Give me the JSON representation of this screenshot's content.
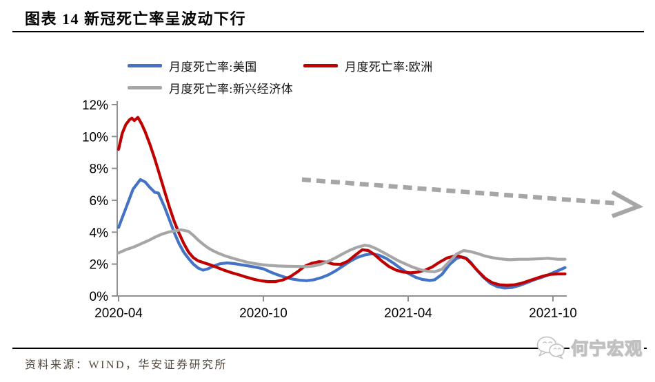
{
  "header": {
    "title": "图表 14 新冠死亡率呈波动下行"
  },
  "footer": {
    "source": "资料来源：WIND，华安证券研究所"
  },
  "watermark": {
    "text": "何宁宏观",
    "icon": "wechat-chat-bubbles-icon"
  },
  "chart_data": {
    "type": "line",
    "title": "图表 14 新冠死亡率呈波动下行",
    "grid": false,
    "legend_position": "top",
    "x_axis": {
      "unit": "months since 2020-04",
      "range_months": [
        0,
        18.6
      ],
      "ticks": [
        {
          "pos": 0,
          "label": "2020-04"
        },
        {
          "pos": 6,
          "label": "2020-10"
        },
        {
          "pos": 12,
          "label": "2021-04"
        },
        {
          "pos": 18,
          "label": "2021-10"
        }
      ]
    },
    "y_axis": {
      "unit": "%",
      "range": [
        0,
        12
      ],
      "ticks": [
        {
          "value": 0,
          "label": "0%"
        },
        {
          "value": 2,
          "label": "2%"
        },
        {
          "value": 4,
          "label": "4%"
        },
        {
          "value": 6,
          "label": "6%"
        },
        {
          "value": 8,
          "label": "8%"
        },
        {
          "value": 10,
          "label": "10%"
        },
        {
          "value": 12,
          "label": "12%"
        }
      ]
    },
    "series": [
      {
        "name": "月度死亡率:美国",
        "color": "#4472C4",
        "points": [
          [
            0,
            4.3
          ],
          [
            0.3,
            5.5
          ],
          [
            0.6,
            6.7
          ],
          [
            0.9,
            7.3
          ],
          [
            1.1,
            7.15
          ],
          [
            1.3,
            6.8
          ],
          [
            1.5,
            6.5
          ],
          [
            1.65,
            6.45
          ],
          [
            1.9,
            5.6
          ],
          [
            2.1,
            4.8
          ],
          [
            2.3,
            4.0
          ],
          [
            2.5,
            3.3
          ],
          [
            2.7,
            2.75
          ],
          [
            2.9,
            2.35
          ],
          [
            3.1,
            2.0
          ],
          [
            3.3,
            1.75
          ],
          [
            3.5,
            1.62
          ],
          [
            3.7,
            1.7
          ],
          [
            3.9,
            1.85
          ],
          [
            4.2,
            2.02
          ],
          [
            4.5,
            2.07
          ],
          [
            4.8,
            2.03
          ],
          [
            5.1,
            1.95
          ],
          [
            5.4,
            1.88
          ],
          [
            5.7,
            1.8
          ],
          [
            6.0,
            1.7
          ],
          [
            6.3,
            1.5
          ],
          [
            6.6,
            1.32
          ],
          [
            6.9,
            1.17
          ],
          [
            7.2,
            1.06
          ],
          [
            7.5,
            0.99
          ],
          [
            7.8,
            0.96
          ],
          [
            8.1,
            1.02
          ],
          [
            8.4,
            1.15
          ],
          [
            8.7,
            1.33
          ],
          [
            9.0,
            1.58
          ],
          [
            9.3,
            1.88
          ],
          [
            9.6,
            2.18
          ],
          [
            9.9,
            2.42
          ],
          [
            10.2,
            2.57
          ],
          [
            10.5,
            2.65
          ],
          [
            10.8,
            2.55
          ],
          [
            11.1,
            2.35
          ],
          [
            11.4,
            2.05
          ],
          [
            11.7,
            1.72
          ],
          [
            12.0,
            1.42
          ],
          [
            12.3,
            1.18
          ],
          [
            12.6,
            1.03
          ],
          [
            12.9,
            0.97
          ],
          [
            13.1,
            1.02
          ],
          [
            13.4,
            1.35
          ],
          [
            13.7,
            1.95
          ],
          [
            14.0,
            2.35
          ],
          [
            14.2,
            2.45
          ],
          [
            14.4,
            2.38
          ],
          [
            14.6,
            2.1
          ],
          [
            14.8,
            1.7
          ],
          [
            15.1,
            1.2
          ],
          [
            15.4,
            0.8
          ],
          [
            15.7,
            0.58
          ],
          [
            16.0,
            0.5
          ],
          [
            16.3,
            0.53
          ],
          [
            16.6,
            0.65
          ],
          [
            16.9,
            0.82
          ],
          [
            17.2,
            1.0
          ],
          [
            17.5,
            1.15
          ],
          [
            17.8,
            1.32
          ],
          [
            18.1,
            1.52
          ],
          [
            18.3,
            1.65
          ],
          [
            18.5,
            1.78
          ]
        ]
      },
      {
        "name": "月度死亡率:欧洲",
        "color": "#C00000",
        "points": [
          [
            0,
            9.2
          ],
          [
            0.15,
            10.2
          ],
          [
            0.3,
            10.75
          ],
          [
            0.45,
            11.05
          ],
          [
            0.55,
            11.15
          ],
          [
            0.65,
            11.0
          ],
          [
            0.8,
            11.2
          ],
          [
            0.95,
            10.8
          ],
          [
            1.1,
            10.3
          ],
          [
            1.3,
            9.5
          ],
          [
            1.5,
            8.6
          ],
          [
            1.7,
            7.6
          ],
          [
            1.9,
            6.6
          ],
          [
            2.1,
            5.6
          ],
          [
            2.3,
            4.7
          ],
          [
            2.5,
            3.95
          ],
          [
            2.7,
            3.3
          ],
          [
            2.9,
            2.75
          ],
          [
            3.1,
            2.4
          ],
          [
            3.3,
            2.2
          ],
          [
            3.6,
            2.05
          ],
          [
            3.8,
            1.95
          ],
          [
            4.1,
            1.78
          ],
          [
            4.4,
            1.6
          ],
          [
            4.7,
            1.45
          ],
          [
            5.0,
            1.32
          ],
          [
            5.3,
            1.18
          ],
          [
            5.6,
            1.05
          ],
          [
            5.9,
            0.95
          ],
          [
            6.2,
            0.9
          ],
          [
            6.5,
            0.9
          ],
          [
            6.8,
            1.0
          ],
          [
            7.1,
            1.2
          ],
          [
            7.4,
            1.5
          ],
          [
            7.7,
            1.85
          ],
          [
            8.0,
            2.05
          ],
          [
            8.3,
            2.15
          ],
          [
            8.6,
            2.13
          ],
          [
            8.9,
            2.0
          ],
          [
            9.2,
            1.98
          ],
          [
            9.5,
            2.18
          ],
          [
            9.8,
            2.55
          ],
          [
            10.1,
            2.9
          ],
          [
            10.35,
            2.85
          ],
          [
            10.6,
            2.6
          ],
          [
            10.9,
            2.2
          ],
          [
            11.2,
            1.85
          ],
          [
            11.5,
            1.62
          ],
          [
            11.8,
            1.5
          ],
          [
            12.1,
            1.45
          ],
          [
            12.4,
            1.5
          ],
          [
            12.7,
            1.62
          ],
          [
            13.0,
            1.82
          ],
          [
            13.3,
            2.12
          ],
          [
            13.6,
            2.38
          ],
          [
            13.9,
            2.5
          ],
          [
            14.1,
            2.5
          ],
          [
            14.4,
            2.35
          ],
          [
            14.6,
            2.05
          ],
          [
            14.9,
            1.55
          ],
          [
            15.2,
            1.1
          ],
          [
            15.5,
            0.82
          ],
          [
            15.8,
            0.7
          ],
          [
            16.1,
            0.67
          ],
          [
            16.4,
            0.7
          ],
          [
            16.7,
            0.8
          ],
          [
            17.0,
            0.95
          ],
          [
            17.3,
            1.1
          ],
          [
            17.6,
            1.25
          ],
          [
            17.9,
            1.35
          ],
          [
            18.2,
            1.38
          ],
          [
            18.5,
            1.38
          ]
        ]
      },
      {
        "name": "月度死亡率:新兴经济体",
        "color": "#A6A6A6",
        "points": [
          [
            0,
            2.7
          ],
          [
            0.3,
            2.9
          ],
          [
            0.6,
            3.05
          ],
          [
            0.9,
            3.25
          ],
          [
            1.2,
            3.45
          ],
          [
            1.5,
            3.68
          ],
          [
            1.8,
            3.88
          ],
          [
            2.1,
            4.02
          ],
          [
            2.4,
            4.1
          ],
          [
            2.6,
            4.15
          ],
          [
            2.9,
            4.05
          ],
          [
            3.1,
            3.8
          ],
          [
            3.3,
            3.5
          ],
          [
            3.5,
            3.25
          ],
          [
            3.7,
            3.02
          ],
          [
            3.9,
            2.85
          ],
          [
            4.1,
            2.7
          ],
          [
            4.4,
            2.52
          ],
          [
            4.7,
            2.38
          ],
          [
            5.0,
            2.25
          ],
          [
            5.3,
            2.13
          ],
          [
            5.6,
            2.04
          ],
          [
            5.9,
            1.97
          ],
          [
            6.2,
            1.92
          ],
          [
            6.6,
            1.88
          ],
          [
            7.0,
            1.86
          ],
          [
            7.4,
            1.85
          ],
          [
            7.8,
            1.84
          ],
          [
            8.1,
            1.88
          ],
          [
            8.4,
            2.0
          ],
          [
            8.7,
            2.18
          ],
          [
            9.0,
            2.4
          ],
          [
            9.3,
            2.65
          ],
          [
            9.6,
            2.88
          ],
          [
            9.9,
            3.06
          ],
          [
            10.2,
            3.18
          ],
          [
            10.4,
            3.14
          ],
          [
            10.7,
            2.95
          ],
          [
            11.0,
            2.7
          ],
          [
            11.3,
            2.45
          ],
          [
            11.6,
            2.2
          ],
          [
            11.9,
            2.0
          ],
          [
            12.2,
            1.8
          ],
          [
            12.5,
            1.65
          ],
          [
            12.8,
            1.55
          ],
          [
            13.1,
            1.52
          ],
          [
            13.4,
            1.68
          ],
          [
            13.7,
            2.15
          ],
          [
            14.0,
            2.62
          ],
          [
            14.3,
            2.85
          ],
          [
            14.6,
            2.78
          ],
          [
            14.9,
            2.65
          ],
          [
            15.2,
            2.5
          ],
          [
            15.5,
            2.4
          ],
          [
            15.8,
            2.33
          ],
          [
            16.2,
            2.27
          ],
          [
            16.6,
            2.3
          ],
          [
            17.0,
            2.3
          ],
          [
            17.4,
            2.33
          ],
          [
            17.8,
            2.36
          ],
          [
            18.2,
            2.3
          ],
          [
            18.5,
            2.3
          ]
        ]
      }
    ],
    "annotation_arrow": {
      "style": "dashed",
      "color": "#A6A6A6",
      "from": {
        "month": 7.6,
        "pct": 7.3
      },
      "to": {
        "month": 20.7,
        "pct": 5.8
      }
    }
  }
}
